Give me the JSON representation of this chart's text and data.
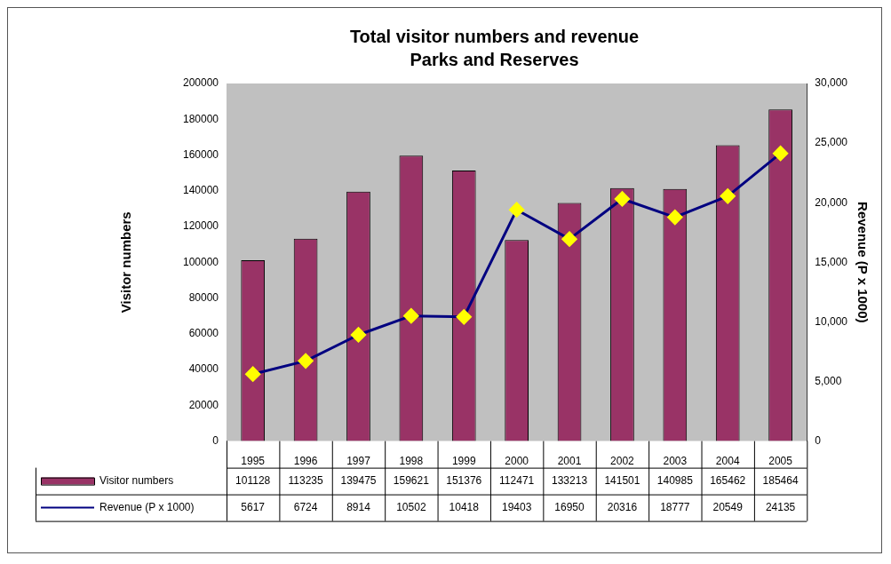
{
  "chart_data": {
    "type": "bar",
    "title": "Total visitor numbers and revenue",
    "subtitle": "Parks and Reserves",
    "ylabel": "Visitor numbers",
    "y2label": "Revenue (P x 1000)",
    "categories": [
      "1995",
      "1996",
      "1997",
      "1998",
      "1999",
      "2000",
      "2001",
      "2002",
      "2003",
      "2004",
      "2005"
    ],
    "series": [
      {
        "name": "Visitor numbers",
        "color": "#993366",
        "values": [
          101128,
          113235,
          139475,
          159621,
          151376,
          112471,
          133213,
          141501,
          140985,
          165462,
          185464
        ]
      },
      {
        "name": "Revenue (P x 1000)",
        "type": "line",
        "axis": "y2",
        "color": "#000080",
        "values": [
          5617,
          6724,
          8914,
          10502,
          10418,
          19403,
          16950,
          20316,
          18777,
          20549,
          24135
        ]
      }
    ],
    "ylim": [
      0,
      200000
    ],
    "yticks": [
      0,
      20000,
      40000,
      60000,
      80000,
      100000,
      120000,
      140000,
      160000,
      180000,
      200000
    ],
    "y2lim": [
      0,
      30000
    ],
    "y2ticks": [
      {
        "value": 0,
        "label": "0"
      },
      {
        "value": 5000,
        "label": "5,000"
      },
      {
        "value": 10000,
        "label": "10,000"
      },
      {
        "value": 15000,
        "label": "15,000"
      },
      {
        "value": 20000,
        "label": "20,000"
      },
      {
        "value": 25000,
        "label": "25,000"
      },
      {
        "value": 30000,
        "label": "30,000"
      }
    ],
    "grid": false,
    "legend": "bottom",
    "marker": "diamond",
    "line_style": "solid",
    "data_labels": true
  }
}
